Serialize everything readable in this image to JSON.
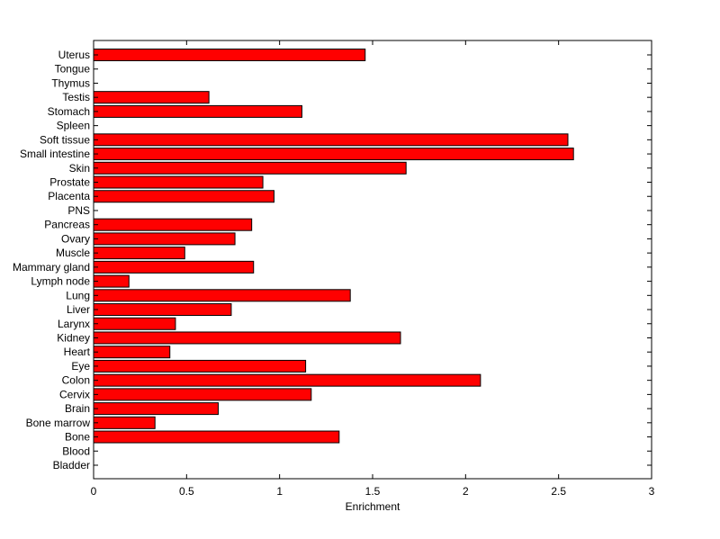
{
  "chart_data": {
    "type": "bar",
    "orientation": "horizontal",
    "xlabel": "Enrichment",
    "ylabel": "",
    "title": "",
    "xlim": [
      0,
      3
    ],
    "xticks": [
      0,
      0.5,
      1,
      1.5,
      2,
      2.5,
      3
    ],
    "xtick_labels": [
      "0",
      "0.5",
      "1",
      "1.5",
      "2",
      "2.5",
      "3"
    ],
    "grid": false,
    "bar_color": "#ff0000",
    "categories": [
      "Bladder",
      "Blood",
      "Bone",
      "Bone marrow",
      "Brain",
      "Cervix",
      "Colon",
      "Eye",
      "Heart",
      "Kidney",
      "Larynx",
      "Liver",
      "Lung",
      "Lymph node",
      "Mammary gland",
      "Muscle",
      "Ovary",
      "Pancreas",
      "PNS",
      "Placenta",
      "Prostate",
      "Skin",
      "Small intestine",
      "Soft tissue",
      "Spleen",
      "Stomach",
      "Testis",
      "Thymus",
      "Tongue",
      "Uterus"
    ],
    "values": [
      0,
      0,
      1.32,
      0.33,
      0.67,
      1.17,
      2.08,
      1.14,
      0.41,
      1.65,
      0.44,
      0.74,
      1.38,
      0.19,
      0.86,
      0.49,
      0.76,
      0.85,
      0,
      0.97,
      0.91,
      1.68,
      2.58,
      2.55,
      0,
      1.12,
      0.62,
      0,
      0,
      1.46
    ]
  }
}
